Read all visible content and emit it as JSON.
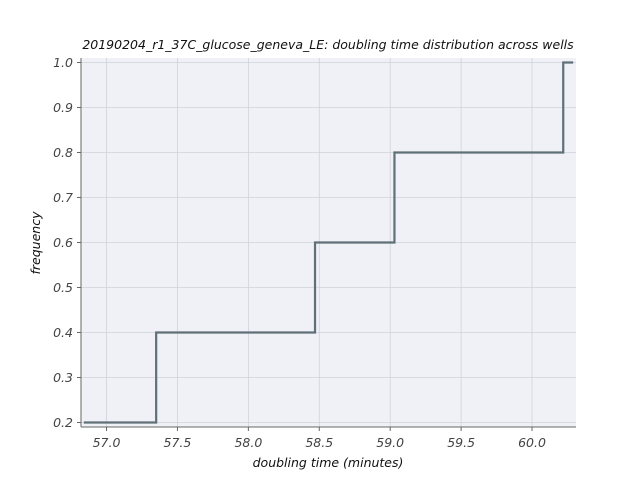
{
  "chart_data": {
    "type": "line",
    "drawstyle": "steps-post",
    "title": "20190204_r1_37C_glucose_geneva_LE: doubling time distribution across wells",
    "xlabel": "doubling time (minutes)",
    "ylabel": "frequency",
    "xlim": [
      56.82,
      60.31
    ],
    "ylim": [
      0.19,
      1.01
    ],
    "x_ticks": [
      57.0,
      57.5,
      58.0,
      58.5,
      59.0,
      59.5,
      60.0
    ],
    "x_tick_labels": [
      "57.0",
      "57.5",
      "58.0",
      "58.5",
      "59.0",
      "59.5",
      "60.0"
    ],
    "y_ticks": [
      0.2,
      0.3,
      0.4,
      0.5,
      0.6,
      0.7,
      0.8,
      0.9,
      1.0
    ],
    "y_tick_labels": [
      "0.2",
      "0.3",
      "0.4",
      "0.5",
      "0.6",
      "0.7",
      "0.8",
      "0.9",
      "1.0"
    ],
    "grid": true,
    "legend": false,
    "series": [
      {
        "x": [
          56.84,
          57.35,
          58.47,
          59.03,
          60.22,
          60.29
        ],
        "y": [
          0.2,
          0.4,
          0.6,
          0.8,
          1.0,
          1.0
        ],
        "color": "#5f7078"
      }
    ],
    "colors": {
      "plot_background": "#eff1f6",
      "grid": "#cfd2d9",
      "axis": "#666666",
      "line": "#5f7078"
    }
  }
}
